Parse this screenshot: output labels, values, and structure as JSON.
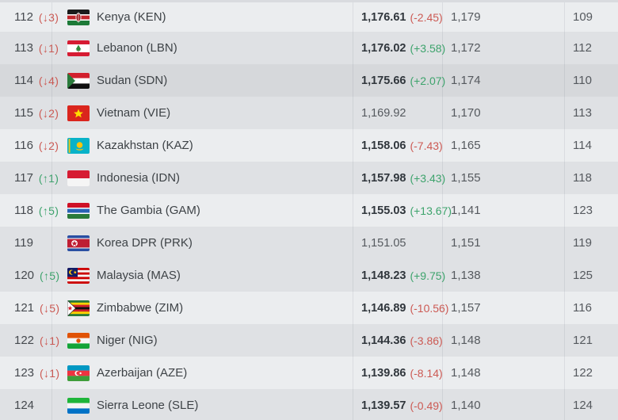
{
  "table": {
    "description": "World football ranking table rows 112-124",
    "columns": [
      "rank",
      "rank_change",
      "team",
      "points",
      "points_change",
      "previous_points",
      "previous_rank"
    ],
    "colors": {
      "up_green": "#3da36c",
      "down_red": "#cc5a54",
      "row_light": "#ebedef",
      "row_medium": "#dfe1e4",
      "row_highlight_dark": "#d6d8db",
      "points_bold_text": "#30363c",
      "muted_text": "#55595e"
    },
    "rows": [
      {
        "rank": "112",
        "rank_change": "(↓3)",
        "rank_dir": "down",
        "team": "Kenya (KEN)",
        "flag": "ken",
        "points": "1,176.61",
        "points_change": "(-2.45)",
        "points_dir": "down",
        "prev_points": "1,179",
        "prev_rank": "109",
        "shade": "light"
      },
      {
        "rank": "113",
        "rank_change": "(↓1)",
        "rank_dir": "down",
        "team": "Lebanon (LBN)",
        "flag": "lbn",
        "points": "1,176.02",
        "points_change": "(+3.58)",
        "points_dir": "up",
        "prev_points": "1,172",
        "prev_rank": "112",
        "shade": "medium"
      },
      {
        "rank": "114",
        "rank_change": "(↓4)",
        "rank_dir": "down",
        "team": "Sudan (SDN)",
        "flag": "sdn",
        "points": "1,175.66",
        "points_change": "(+2.07)",
        "points_dir": "up",
        "prev_points": "1,174",
        "prev_rank": "110",
        "shade": "dark"
      },
      {
        "rank": "115",
        "rank_change": "(↓2)",
        "rank_dir": "down",
        "team": "Vietnam (VIE)",
        "flag": "vie",
        "points": "1,169.92",
        "points_change": "",
        "points_dir": "",
        "prev_points": "1,170",
        "prev_rank": "113",
        "shade": "medium"
      },
      {
        "rank": "116",
        "rank_change": "(↓2)",
        "rank_dir": "down",
        "team": "Kazakhstan (KAZ)",
        "flag": "kaz",
        "points": "1,158.06",
        "points_change": "(-7.43)",
        "points_dir": "down",
        "prev_points": "1,165",
        "prev_rank": "114",
        "shade": "light"
      },
      {
        "rank": "117",
        "rank_change": "(↑1)",
        "rank_dir": "up",
        "team": "Indonesia (IDN)",
        "flag": "idn",
        "points": "1,157.98",
        "points_change": "(+3.43)",
        "points_dir": "up",
        "prev_points": "1,155",
        "prev_rank": "118",
        "shade": "medium"
      },
      {
        "rank": "118",
        "rank_change": "(↑5)",
        "rank_dir": "up",
        "team": "The Gambia (GAM)",
        "flag": "gam",
        "points": "1,155.03",
        "points_change": "(+13.67)",
        "points_dir": "up",
        "prev_points": "1,141",
        "prev_rank": "123",
        "shade": "light"
      },
      {
        "rank": "119",
        "rank_change": "",
        "rank_dir": "",
        "team": "Korea DPR (PRK)",
        "flag": "prk",
        "points": "1,151.05",
        "points_change": "",
        "points_dir": "",
        "prev_points": "1,151",
        "prev_rank": "119",
        "shade": "medium"
      },
      {
        "rank": "120",
        "rank_change": "(↑5)",
        "rank_dir": "up",
        "team": "Malaysia (MAS)",
        "flag": "mas",
        "points": "1,148.23",
        "points_change": "(+9.75)",
        "points_dir": "up",
        "prev_points": "1,138",
        "prev_rank": "125",
        "shade": "medium"
      },
      {
        "rank": "121",
        "rank_change": "(↓5)",
        "rank_dir": "down",
        "team": "Zimbabwe (ZIM)",
        "flag": "zim",
        "points": "1,146.89",
        "points_change": "(-10.56)",
        "points_dir": "down",
        "prev_points": "1,157",
        "prev_rank": "116",
        "shade": "light"
      },
      {
        "rank": "122",
        "rank_change": "(↓1)",
        "rank_dir": "down",
        "team": "Niger (NIG)",
        "flag": "nig",
        "points": "1,144.36",
        "points_change": "(-3.86)",
        "points_dir": "down",
        "prev_points": "1,148",
        "prev_rank": "121",
        "shade": "medium"
      },
      {
        "rank": "123",
        "rank_change": "(↓1)",
        "rank_dir": "down",
        "team": "Azerbaijan (AZE)",
        "flag": "aze",
        "points": "1,139.86",
        "points_change": "(-8.14)",
        "points_dir": "down",
        "prev_points": "1,148",
        "prev_rank": "122",
        "shade": "light"
      },
      {
        "rank": "124",
        "rank_change": "",
        "rank_dir": "",
        "team": "Sierra Leone (SLE)",
        "flag": "sle",
        "points": "1,139.57",
        "points_change": "(-0.49)",
        "points_dir": "down",
        "prev_points": "1,140",
        "prev_rank": "124",
        "shade": "medium"
      }
    ]
  }
}
